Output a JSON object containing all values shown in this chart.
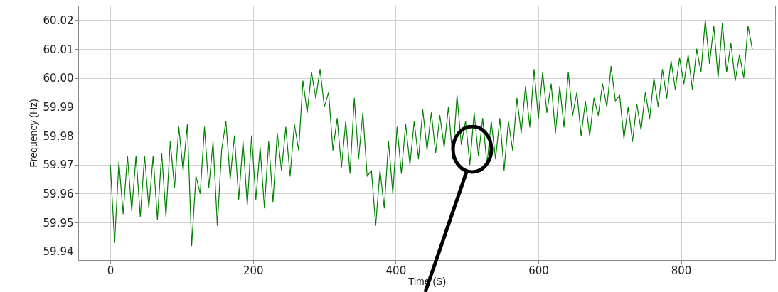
{
  "chart_data": {
    "type": "line",
    "xlabel": "Time (S)",
    "ylabel": "Frequency (Hz)",
    "x": [
      0,
      6,
      12,
      18,
      24,
      30,
      36,
      42,
      48,
      54,
      60,
      66,
      72,
      78,
      84,
      90,
      96,
      102,
      108,
      114,
      120,
      126,
      132,
      138,
      144,
      150,
      156,
      162,
      168,
      174,
      180,
      186,
      192,
      198,
      204,
      210,
      216,
      222,
      228,
      234,
      240,
      246,
      252,
      258,
      264,
      270,
      276,
      282,
      288,
      294,
      300,
      306,
      312,
      318,
      324,
      330,
      336,
      342,
      348,
      354,
      360,
      366,
      372,
      378,
      384,
      390,
      396,
      402,
      408,
      414,
      420,
      426,
      432,
      438,
      444,
      450,
      456,
      462,
      468,
      474,
      480,
      486,
      492,
      498,
      504,
      510,
      516,
      522,
      528,
      534,
      540,
      546,
      552,
      558,
      564,
      570,
      576,
      582,
      588,
      594,
      600,
      606,
      612,
      618,
      624,
      630,
      636,
      642,
      648,
      654,
      660,
      666,
      672,
      678,
      684,
      690,
      696,
      702,
      708,
      714,
      720,
      726,
      732,
      738,
      744,
      750,
      756,
      762,
      768,
      774,
      780,
      786,
      792,
      798,
      804,
      810,
      816,
      822,
      828,
      834,
      840,
      846,
      852,
      858,
      864,
      870,
      876,
      882,
      888,
      894,
      900
    ],
    "series": [
      {
        "color": "#008000",
        "values": [
          59.97,
          59.943,
          59.971,
          59.953,
          59.973,
          59.954,
          59.973,
          59.952,
          59.973,
          59.955,
          59.973,
          59.951,
          59.974,
          59.952,
          59.978,
          59.962,
          59.983,
          59.968,
          59.984,
          59.942,
          59.966,
          59.96,
          59.983,
          59.962,
          59.978,
          59.949,
          59.975,
          59.985,
          59.965,
          59.98,
          59.958,
          59.978,
          59.956,
          59.98,
          59.958,
          59.976,
          59.955,
          59.978,
          59.957,
          59.981,
          59.968,
          59.983,
          59.966,
          59.984,
          59.975,
          59.999,
          59.988,
          60.002,
          59.993,
          60.003,
          59.99,
          59.995,
          59.975,
          59.986,
          59.969,
          59.985,
          59.967,
          59.993,
          59.972,
          59.988,
          59.966,
          59.968,
          59.949,
          59.968,
          59.955,
          59.978,
          59.96,
          59.983,
          59.967,
          59.984,
          59.97,
          59.985,
          59.972,
          59.989,
          59.975,
          59.988,
          59.974,
          59.987,
          59.976,
          59.99,
          59.972,
          59.994,
          59.977,
          59.985,
          59.97,
          59.988,
          59.973,
          59.986,
          59.97,
          59.985,
          59.972,
          59.986,
          59.968,
          59.985,
          59.975,
          59.993,
          59.981,
          59.997,
          59.983,
          60.003,
          59.986,
          60.002,
          59.988,
          59.998,
          59.981,
          59.997,
          59.983,
          60.002,
          59.987,
          59.995,
          59.98,
          59.992,
          59.98,
          59.993,
          59.987,
          59.998,
          59.99,
          60.004,
          59.992,
          59.994,
          59.979,
          59.99,
          59.978,
          59.991,
          59.982,
          59.995,
          59.986,
          60.0,
          59.99,
          60.003,
          59.993,
          60.006,
          59.996,
          60.007,
          59.998,
          60.008,
          59.996,
          60.01,
          60.002,
          60.02,
          60.005,
          60.018,
          60.0,
          60.019,
          60.002,
          60.012,
          59.999,
          60.008,
          60.0,
          60.018,
          60.01
        ]
      }
    ],
    "xlim": [
      -45,
      932
    ],
    "ylim": [
      59.937,
      60.025
    ],
    "xticks": [
      0,
      200,
      400,
      600,
      800
    ],
    "yticks": [
      59.94,
      59.95,
      59.96,
      59.97,
      59.98,
      59.99,
      {
        "value": 60,
        "label": "60.00"
      },
      60.01,
      60.02
    ],
    "grid": true
  }
}
